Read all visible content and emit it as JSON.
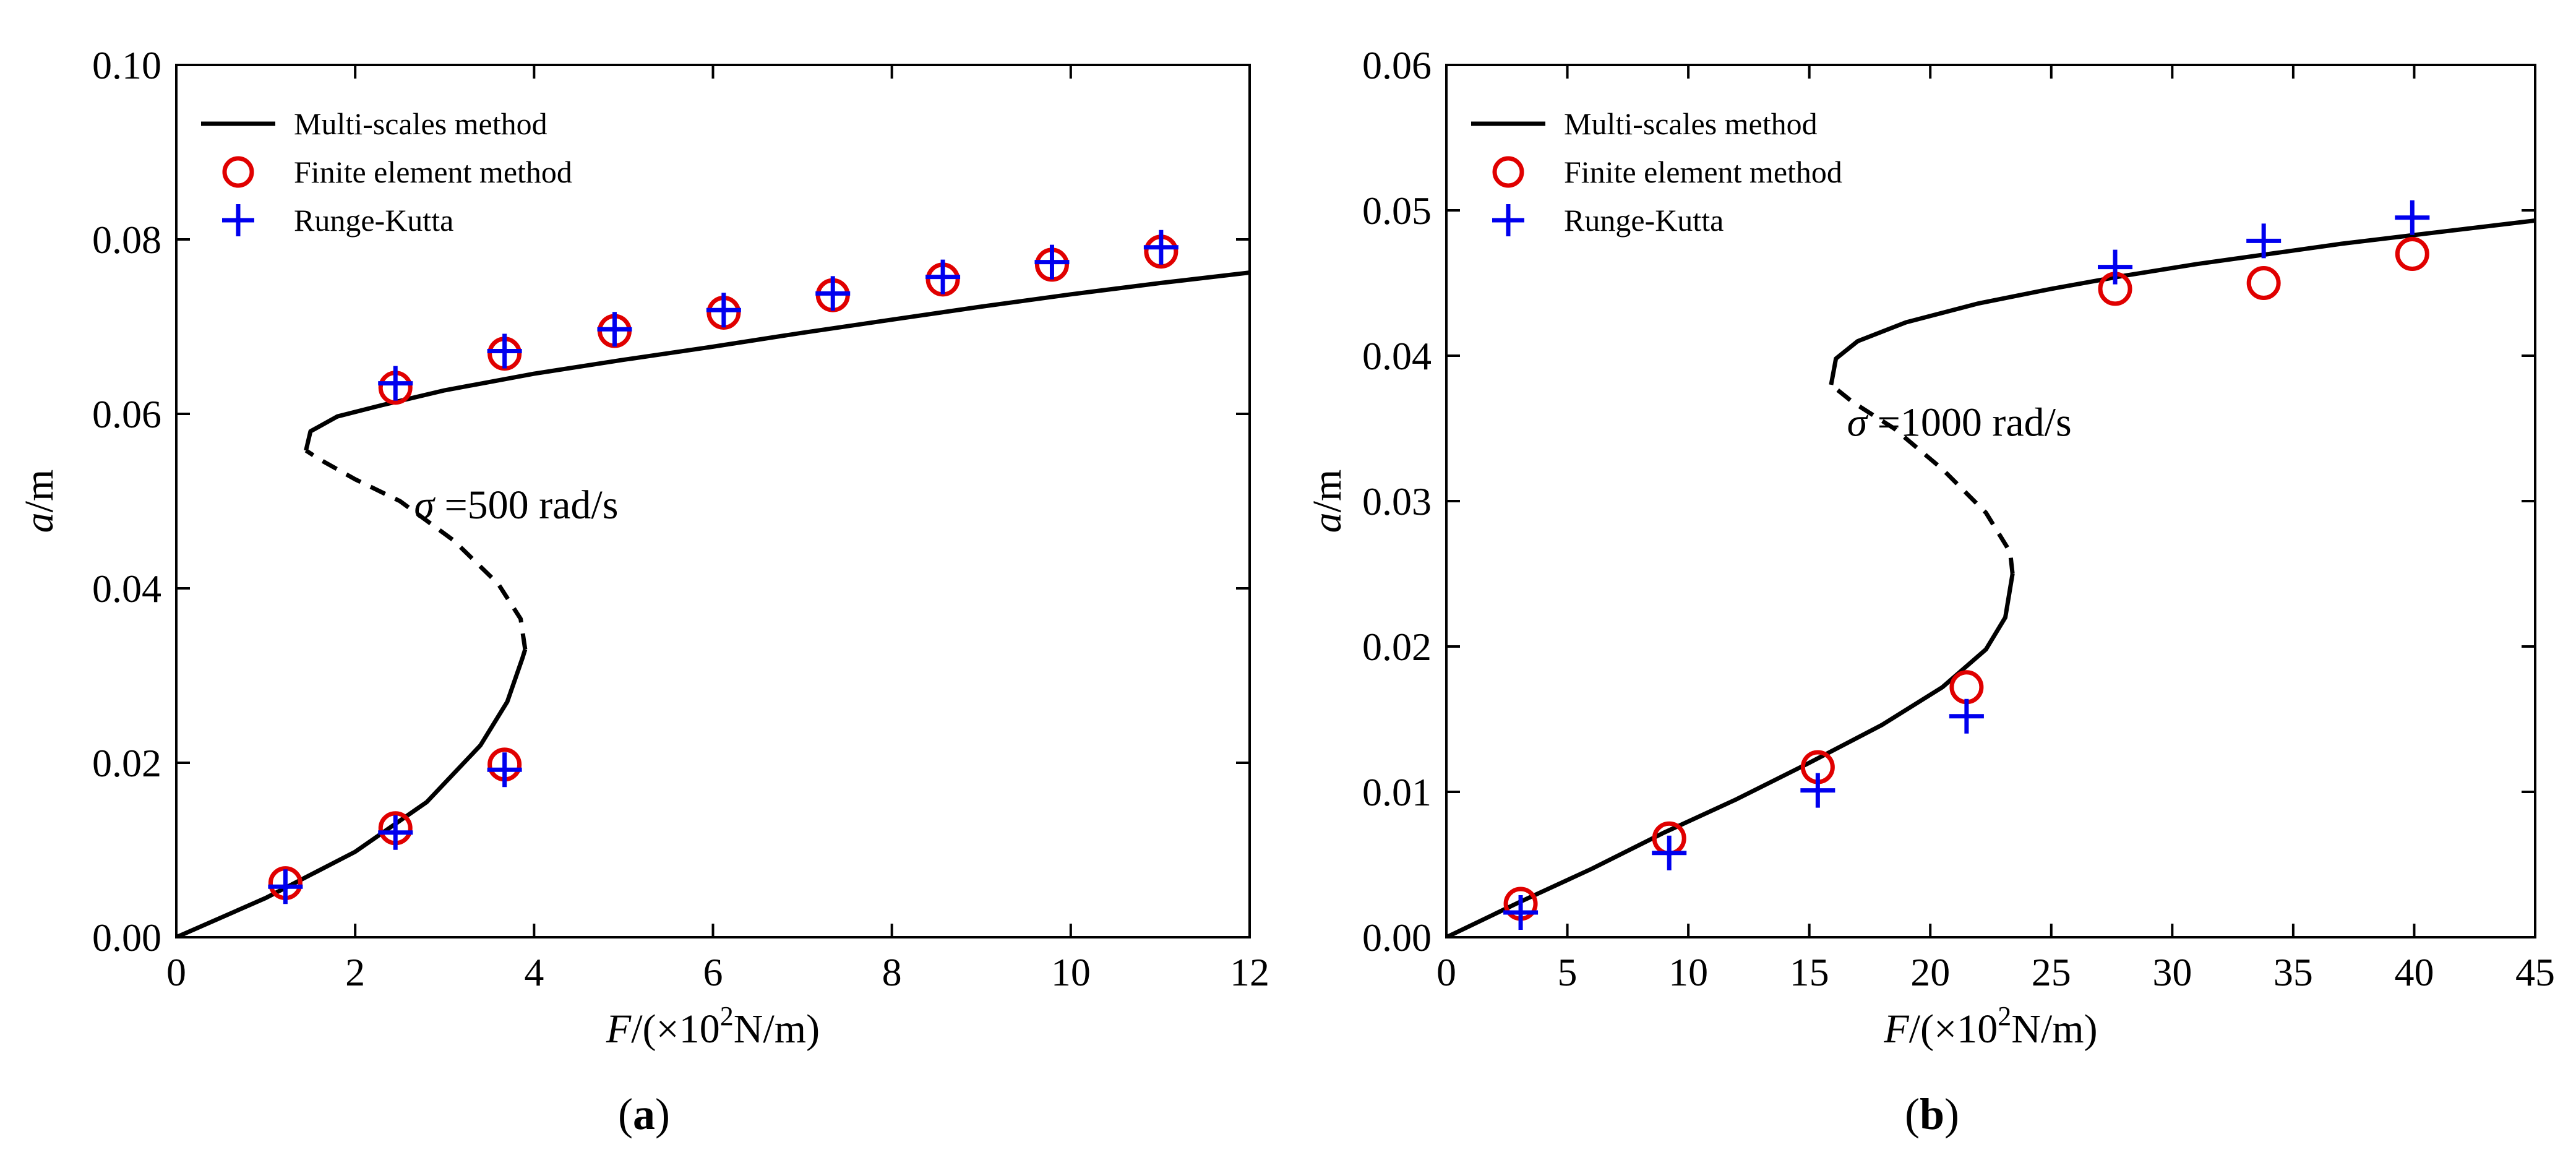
{
  "chart_data": [
    {
      "id": "a",
      "type": "scatter",
      "caption_label": "a",
      "xlabel": {
        "symbol": "F",
        "rest": "/(×10",
        "sup": "2",
        "unit": "N/m)"
      },
      "ylabel": {
        "symbol": "a",
        "unit": "/m"
      },
      "xlim": [
        0,
        12
      ],
      "ylim": [
        0,
        0.1
      ],
      "xticks": [
        0,
        2,
        4,
        6,
        8,
        10,
        12
      ],
      "yticks": [
        0.0,
        0.02,
        0.04,
        0.06,
        0.08,
        0.1
      ],
      "ytick_decimals": 2,
      "legend_position": "top-left",
      "legend": [
        "Multi-scales method",
        "Finite element method",
        "Runge-Kutta"
      ],
      "annotation": {
        "symbol": "σ",
        "text": " =500 rad/s",
        "x": 3.8,
        "y": 0.048
      },
      "series": [
        {
          "name": "Multi-scales method",
          "style": "solid-line",
          "color": "#000000",
          "segments": [
            {
              "dash": false,
              "points": [
                [
                  0,
                  0
                ],
                [
                  1,
                  0.0045
                ],
                [
                  2,
                  0.0098
                ],
                [
                  2.8,
                  0.0155
                ],
                [
                  3.4,
                  0.022
                ],
                [
                  3.7,
                  0.027
                ],
                [
                  3.87,
                  0.032
                ],
                [
                  3.9,
                  0.033
                ]
              ]
            },
            {
              "dash": true,
              "points": [
                [
                  3.9,
                  0.033
                ],
                [
                  3.85,
                  0.0365
                ],
                [
                  3.6,
                  0.0405
                ],
                [
                  3.1,
                  0.0455
                ],
                [
                  2.5,
                  0.05
                ],
                [
                  2.0,
                  0.0525
                ],
                [
                  1.6,
                  0.0548
                ],
                [
                  1.45,
                  0.0558
                ]
              ]
            },
            {
              "dash": false,
              "points": [
                [
                  1.45,
                  0.0558
                ],
                [
                  1.5,
                  0.058
                ],
                [
                  1.8,
                  0.0597
                ],
                [
                  2.3,
                  0.061
                ],
                [
                  3,
                  0.0627
                ],
                [
                  4,
                  0.0646
                ],
                [
                  5,
                  0.0662
                ],
                [
                  6,
                  0.0677
                ],
                [
                  7,
                  0.0693
                ],
                [
                  8,
                  0.0708
                ],
                [
                  9,
                  0.0723
                ],
                [
                  10,
                  0.0737
                ],
                [
                  11,
                  0.075
                ],
                [
                  12,
                  0.0762
                ]
              ]
            }
          ]
        },
        {
          "name": "Finite element method",
          "style": "open-circle",
          "color": "#e00000",
          "x": [
            1.22,
            2.45,
            3.67,
            2.45,
            3.67,
            4.9,
            6.12,
            7.34,
            8.57,
            9.79,
            11.01
          ],
          "y": [
            0.0062,
            0.0125,
            0.0198,
            0.063,
            0.0669,
            0.0695,
            0.0716,
            0.0736,
            0.0754,
            0.0771,
            0.0786
          ]
        },
        {
          "name": "Runge-Kutta",
          "style": "plus",
          "color": "#0000ee",
          "x": [
            1.22,
            2.45,
            3.67,
            2.45,
            3.67,
            4.9,
            6.12,
            7.34,
            8.57,
            9.79,
            11.01
          ],
          "y": [
            0.0058,
            0.012,
            0.0192,
            0.0635,
            0.0672,
            0.0697,
            0.0719,
            0.0738,
            0.0757,
            0.0774,
            0.0791
          ]
        }
      ]
    },
    {
      "id": "b",
      "type": "scatter",
      "caption_label": "b",
      "xlabel": {
        "symbol": "F",
        "rest": "/(×10",
        "sup": "2",
        "unit": "N/m)"
      },
      "ylabel": {
        "symbol": "a",
        "unit": "/m"
      },
      "xlim": [
        0,
        45
      ],
      "ylim": [
        0,
        0.06
      ],
      "xticks": [
        0,
        5,
        10,
        15,
        20,
        25,
        30,
        35,
        40,
        45
      ],
      "yticks": [
        0.0,
        0.01,
        0.02,
        0.03,
        0.04,
        0.05,
        0.06
      ],
      "ytick_decimals": 2,
      "legend_position": "top-left",
      "legend": [
        "Multi-scales method",
        "Finite element method",
        "Runge-Kutta"
      ],
      "annotation": {
        "symbol": "σ",
        "text": " =1000 rad/s",
        "x": 21.2,
        "y": 0.0345
      },
      "series": [
        {
          "name": "Multi-scales method",
          "style": "solid-line",
          "color": "#000000",
          "segments": [
            {
              "dash": false,
              "points": [
                [
                  0,
                  0
                ],
                [
                  3,
                  0.0024
                ],
                [
                  6,
                  0.0047
                ],
                [
                  9,
                  0.0072
                ],
                [
                  12,
                  0.0095
                ],
                [
                  15,
                  0.012
                ],
                [
                  18,
                  0.0146
                ],
                [
                  20.5,
                  0.0172
                ],
                [
                  22.3,
                  0.0198
                ],
                [
                  23.1,
                  0.022
                ],
                [
                  23.4,
                  0.025
                ]
              ]
            },
            {
              "dash": true,
              "points": [
                [
                  23.4,
                  0.025
                ],
                [
                  23.3,
                  0.0265
                ],
                [
                  22.3,
                  0.0292
                ],
                [
                  20.5,
                  0.0322
                ],
                [
                  18.5,
                  0.035
                ],
                [
                  16.8,
                  0.0368
                ],
                [
                  15.9,
                  0.038
                ]
              ]
            },
            {
              "dash": false,
              "points": [
                [
                  15.9,
                  0.038
                ],
                [
                  16.1,
                  0.0398
                ],
                [
                  17,
                  0.041
                ],
                [
                  19,
                  0.0423
                ],
                [
                  22,
                  0.0436
                ],
                [
                  25,
                  0.0446
                ],
                [
                  28,
                  0.0455
                ],
                [
                  31,
                  0.0463
                ],
                [
                  34,
                  0.047
                ],
                [
                  37,
                  0.0477
                ],
                [
                  40,
                  0.0483
                ],
                [
                  45,
                  0.0493
                ]
              ]
            }
          ]
        },
        {
          "name": "Finite element method",
          "style": "open-circle",
          "color": "#e00000",
          "x": [
            3.07,
            9.21,
            15.35,
            21.5,
            27.64,
            33.78,
            39.92
          ],
          "y": [
            0.0023,
            0.0068,
            0.0117,
            0.0172,
            0.0446,
            0.045,
            0.047
          ]
        },
        {
          "name": "Runge-Kutta",
          "style": "plus",
          "color": "#0000ee",
          "x": [
            3.07,
            9.21,
            15.35,
            21.5,
            27.64,
            33.78,
            39.92
          ],
          "y": [
            0.0017,
            0.0058,
            0.0101,
            0.0152,
            0.0461,
            0.0479,
            0.0495
          ]
        }
      ]
    }
  ]
}
